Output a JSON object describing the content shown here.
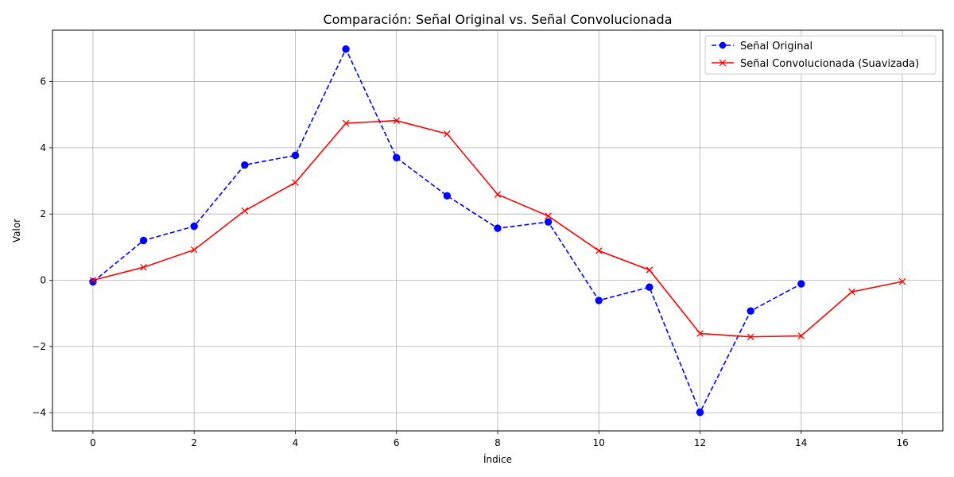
{
  "chart_data": {
    "type": "line",
    "title": "Comparación: Señal Original vs. Señal Convolucionada",
    "xlabel": "Índice",
    "ylabel": "Valor",
    "xlim": [
      -0.8,
      16.8
    ],
    "ylim": [
      -4.55,
      7.55
    ],
    "xticks": [
      0,
      2,
      4,
      6,
      8,
      10,
      12,
      14,
      16
    ],
    "yticks": [
      -4,
      -2,
      0,
      2,
      4,
      6
    ],
    "ytick_labels": [
      "−4",
      "−2",
      "0",
      "2",
      "4",
      "6"
    ],
    "grid": true,
    "legend_position": "top-right",
    "series": [
      {
        "name": "Señal Original",
        "color": "#0000ff",
        "line_style": "dashed",
        "marker": "circle",
        "x": [
          0,
          1,
          2,
          3,
          4,
          5,
          6,
          7,
          8,
          9,
          10,
          11,
          12,
          13,
          14
        ],
        "values": [
          -0.05,
          1.2,
          1.63,
          3.48,
          3.77,
          6.98,
          3.7,
          2.55,
          1.57,
          1.76,
          -0.61,
          -0.21,
          -3.99,
          -0.93,
          -0.11
        ]
      },
      {
        "name": "Señal Convolucionada (Suavizada)",
        "color": "#ff0000",
        "line_style": "solid",
        "marker": "x",
        "x": [
          0,
          1,
          2,
          3,
          4,
          5,
          6,
          7,
          8,
          9,
          10,
          11,
          12,
          13,
          14,
          15,
          16
        ],
        "values": [
          0.0,
          0.39,
          0.92,
          2.1,
          2.95,
          4.74,
          4.82,
          4.42,
          2.59,
          1.94,
          0.89,
          0.31,
          -1.61,
          -1.71,
          -1.68,
          -0.35,
          -0.04
        ]
      }
    ]
  }
}
